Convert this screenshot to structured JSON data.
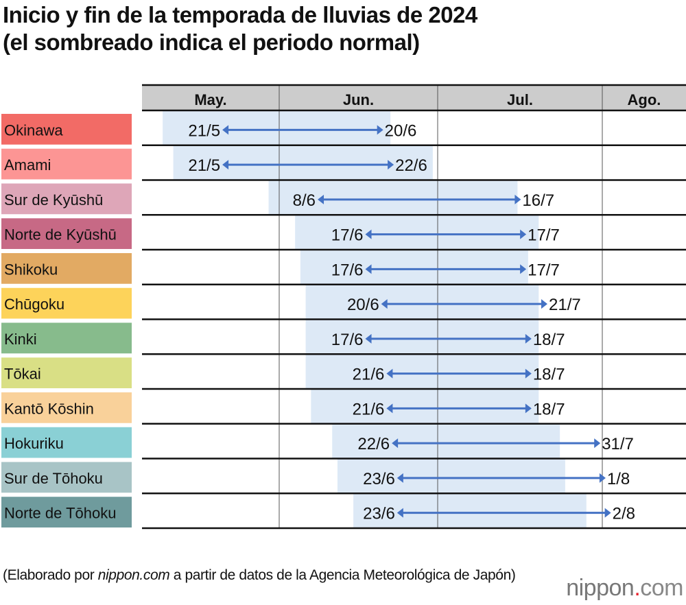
{
  "chart_data": {
    "type": "gantt",
    "title_line1": "Inicio y fin de la temporada de lluvias de 2024",
    "title_line2": "(el sombreado indica el periodo normal)",
    "year": 2024,
    "months": [
      "May.",
      "Jun.",
      "Jul.",
      "Ago."
    ],
    "shade_color": "#dde9f6",
    "arrow_color": "#4472c4",
    "regions": [
      {
        "name": "Okinawa",
        "color": "#f26b66",
        "start": "21/5",
        "end": "20/6",
        "normal_start": "10/5",
        "normal_end": "21/6"
      },
      {
        "name": "Amami",
        "color": "#fc9594",
        "start": "21/5",
        "end": "22/6",
        "normal_start": "12/5",
        "normal_end": "29/6"
      },
      {
        "name": "Sur de Kyūshū",
        "color": "#dea6b8",
        "start": "8/6",
        "end": "16/7",
        "normal_start": "30/5",
        "normal_end": "15/7"
      },
      {
        "name": "Norte de Kyūshū",
        "color": "#c76985",
        "start": "17/6",
        "end": "17/7",
        "normal_start": "4/6",
        "normal_end": "19/7"
      },
      {
        "name": "Shikoku",
        "color": "#e2aa63",
        "start": "17/6",
        "end": "17/7",
        "normal_start": "5/6",
        "normal_end": "17/7"
      },
      {
        "name": "Chūgoku",
        "color": "#fdd35a",
        "start": "20/6",
        "end": "21/7",
        "normal_start": "6/6",
        "normal_end": "19/7"
      },
      {
        "name": "Kinki",
        "color": "#87bb8c",
        "start": "17/6",
        "end": "18/7",
        "normal_start": "6/6",
        "normal_end": "19/7"
      },
      {
        "name": "Tōkai",
        "color": "#d9df85",
        "start": "21/6",
        "end": "18/7",
        "normal_start": "6/6",
        "normal_end": "19/7"
      },
      {
        "name": "Kantō Kōshin",
        "color": "#f9d19a",
        "start": "21/6",
        "end": "18/7",
        "normal_start": "7/6",
        "normal_end": "19/7"
      },
      {
        "name": "Hokuriku",
        "color": "#8ad0d5",
        "start": "22/6",
        "end": "31/7",
        "normal_start": "11/6",
        "normal_end": "23/7"
      },
      {
        "name": "Sur de Tōhoku",
        "color": "#a8c4c6",
        "start": "23/6",
        "end": "1/8",
        "normal_start": "12/6",
        "normal_end": "24/7"
      },
      {
        "name": "Norte de Tōhoku",
        "color": "#6f9b9d",
        "start": "23/6",
        "end": "2/8",
        "normal_start": "15/6",
        "normal_end": "28/7"
      }
    ]
  },
  "footer": {
    "source_prefix": "(Elaborado por ",
    "source_site": "nippon.com",
    "source_suffix": " a partir de datos de la Agencia Meteorológica de Japón)",
    "logo": "nippon.com"
  }
}
